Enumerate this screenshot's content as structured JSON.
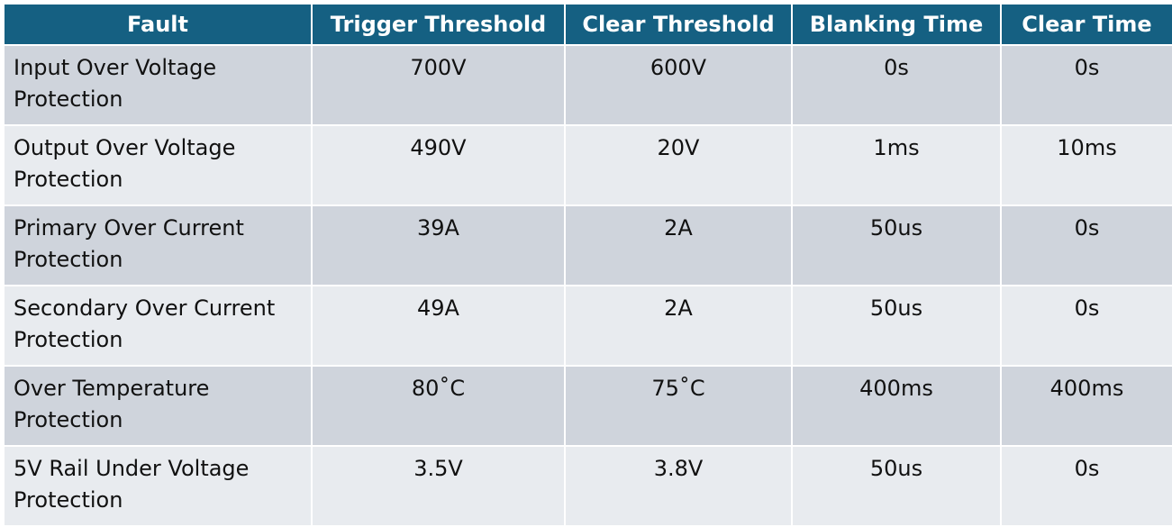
{
  "table": {
    "headers": [
      "Fault",
      "Trigger Threshold",
      "Clear Threshold",
      "Blanking Time",
      "Clear Time"
    ],
    "rows": [
      {
        "fault": "Input Over Voltage Protection",
        "trigger": "700V",
        "clear": "600V",
        "blanking": "0s",
        "clear_time": "0s"
      },
      {
        "fault": "Output Over Voltage Protection",
        "trigger": "490V",
        "clear": "20V",
        "blanking": "1ms",
        "clear_time": "10ms"
      },
      {
        "fault": "Primary Over Current Protection",
        "trigger": "39A",
        "clear": "2A",
        "blanking": "50us",
        "clear_time": "0s"
      },
      {
        "fault": "Secondary Over Current Protection",
        "trigger": "49A",
        "clear": "2A",
        "blanking": "50us",
        "clear_time": "0s"
      },
      {
        "fault": "Over Temperature Protection",
        "trigger": "80˚C",
        "clear": "75˚C",
        "blanking": "400ms",
        "clear_time": "400ms"
      },
      {
        "fault": "5V Rail Under Voltage Protection",
        "trigger": "3.5V",
        "clear": "3.8V",
        "blanking": "50us",
        "clear_time": "0s"
      }
    ]
  },
  "colors": {
    "header_bg": "#156082",
    "header_text": "#ffffff",
    "row_odd_bg": "#cfd4dc",
    "row_even_bg": "#e8ebef"
  }
}
